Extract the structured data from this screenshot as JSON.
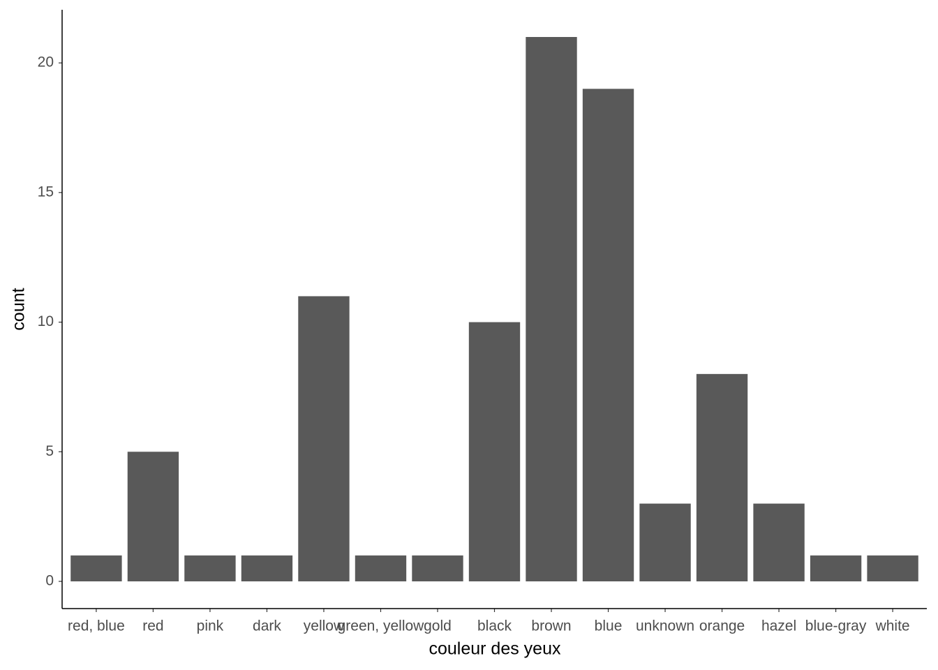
{
  "chart_data": {
    "type": "bar",
    "x_label": "couleur des yeux",
    "y_label": "count",
    "categories": [
      "red, blue",
      "red",
      "pink",
      "dark",
      "yellow",
      "green, yellow",
      "gold",
      "black",
      "brown",
      "blue",
      "unknown",
      "orange",
      "hazel",
      "blue-gray",
      "white"
    ],
    "values": [
      1,
      5,
      1,
      1,
      11,
      1,
      1,
      10,
      21,
      19,
      3,
      8,
      3,
      1,
      1
    ],
    "color": "#595959",
    "ylim": [
      -1.05,
      22.05
    ],
    "yticks": [
      0,
      5,
      10,
      15,
      20
    ],
    "grid": false
  }
}
